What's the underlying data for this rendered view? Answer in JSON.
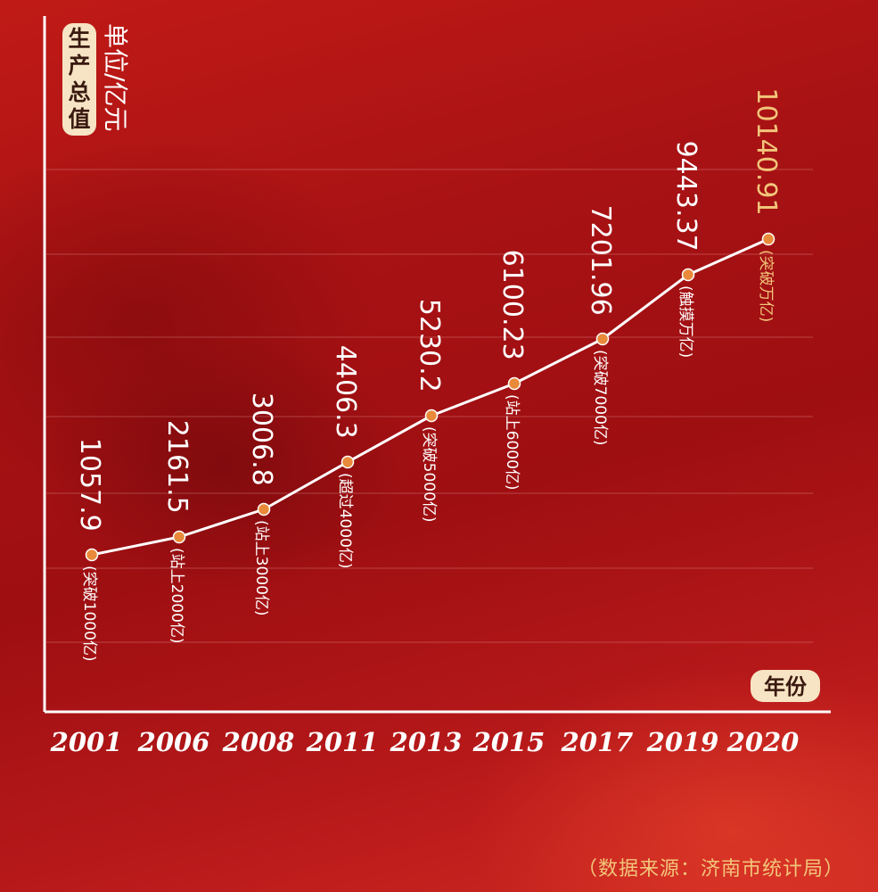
{
  "chart_data": {
    "type": "line",
    "title_tag": "生产总值",
    "unit_label": "单位/亿元",
    "xlabel": "年份",
    "categories": [
      "2001",
      "2006",
      "2008",
      "2011",
      "2013",
      "2015",
      "2017",
      "2019",
      "2020"
    ],
    "values": [
      1057.9,
      2161.5,
      3006.8,
      4406.3,
      5230.2,
      6100.23,
      7201.96,
      9443.37,
      10140.91
    ],
    "value_labels": [
      "1057.9",
      "2161.5",
      "3006.8",
      "4406.3",
      "5230.2",
      "6100.23",
      "7201.96",
      "9443.37",
      "10140.91"
    ],
    "annotations": [
      "(突破1000亿)",
      "(站上2000亿)",
      "(站上3000亿)",
      "(超过4000亿)",
      "(突破5000亿)",
      "(站上6000亿)",
      "(突破7000亿)",
      "(触摸万亿)",
      "(突破万亿)"
    ],
    "grid": true,
    "colors": {
      "line": "#ffffff",
      "marker": "#e98a3a",
      "label": "#ffffff",
      "highlight": "#f2c57a",
      "tag_bg": "#f7e4c4",
      "tag_text": "#3a1a10"
    }
  },
  "source": "（数据来源：济南市统计局）"
}
